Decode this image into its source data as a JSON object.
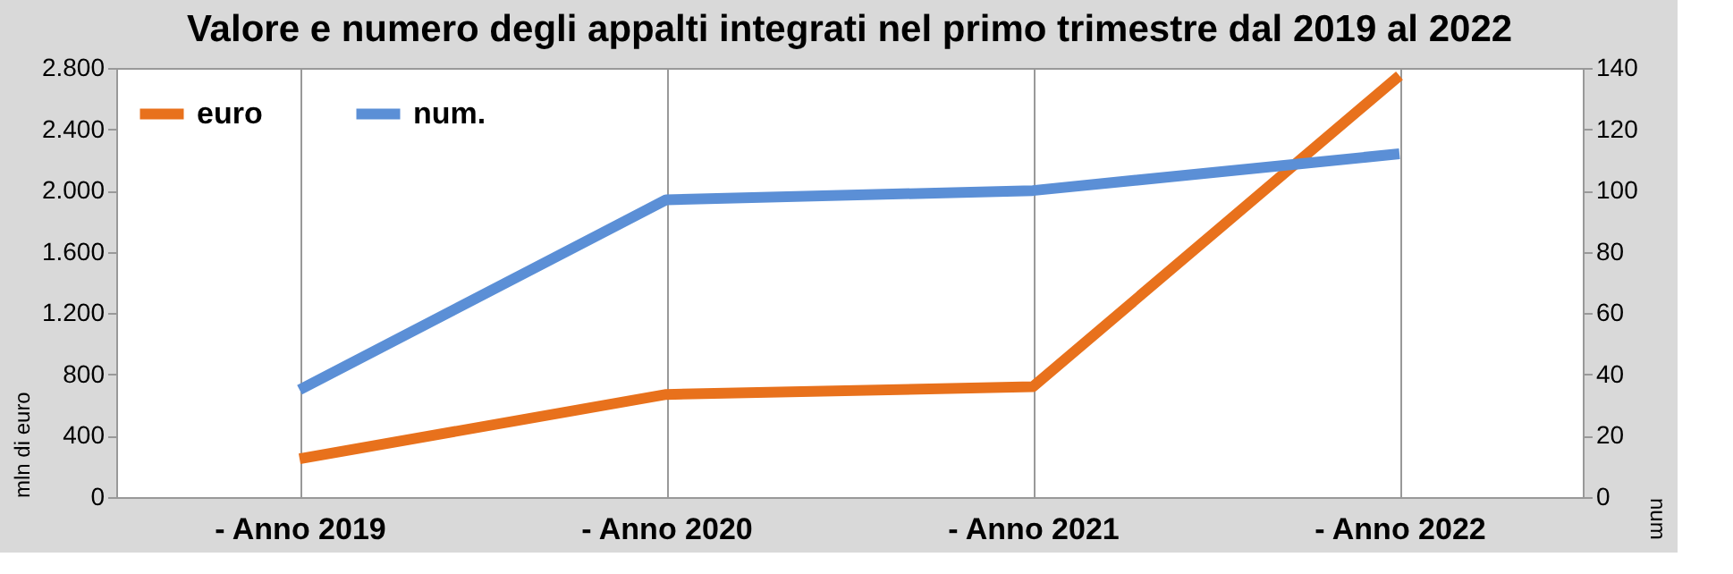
{
  "chart_data": {
    "type": "line",
    "title": "Valore e numero degli appalti integrati nel primo trimestre dal 2019 al 2022",
    "categories": [
      "- Anno 2019",
      "- Anno 2020",
      "- Anno 2021",
      "- Anno 2022"
    ],
    "series": [
      {
        "name": "euro",
        "color": "#e8711c",
        "values": [
          250,
          670,
          720,
          2750
        ]
      },
      {
        "name": "num.",
        "color": "#5b8fd6",
        "values": [
          35,
          97,
          100,
          112
        ],
        "axis": "y2"
      }
    ],
    "ylabel": "mln di euro",
    "y2label": "num",
    "ylim": [
      0,
      2800
    ],
    "yticks": [
      0,
      {
        "value": 400,
        "label": "400"
      },
      {
        "value": 800,
        "label": "800"
      },
      {
        "value": 1200,
        "label": "1.200"
      },
      {
        "value": 1600,
        "label": "1.600"
      },
      {
        "value": 2000,
        "label": "2.000"
      },
      {
        "value": 2400,
        "label": "2.400"
      },
      {
        "value": 2800,
        "label": "2.800"
      }
    ],
    "y2lim": [
      0,
      140
    ],
    "y2ticks": [
      0,
      20,
      40,
      60,
      80,
      100,
      120,
      140
    ],
    "grid": "x",
    "legend": "top left",
    "marker": "none",
    "line_style": "solid"
  }
}
